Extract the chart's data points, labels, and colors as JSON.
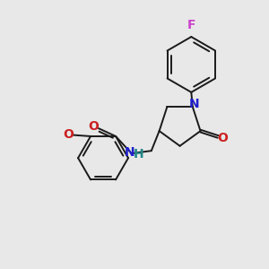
{
  "background_color": "#e8e8e8",
  "bond_color": "#1a1a1a",
  "atom_colors": {
    "F": "#cc44cc",
    "N": "#2020cc",
    "O": "#cc2020",
    "H": "#228888"
  },
  "figsize": [
    3.0,
    3.0
  ],
  "dpi": 100,
  "lw": 1.4,
  "xlim": [
    0,
    10
  ],
  "ylim": [
    0,
    10
  ]
}
